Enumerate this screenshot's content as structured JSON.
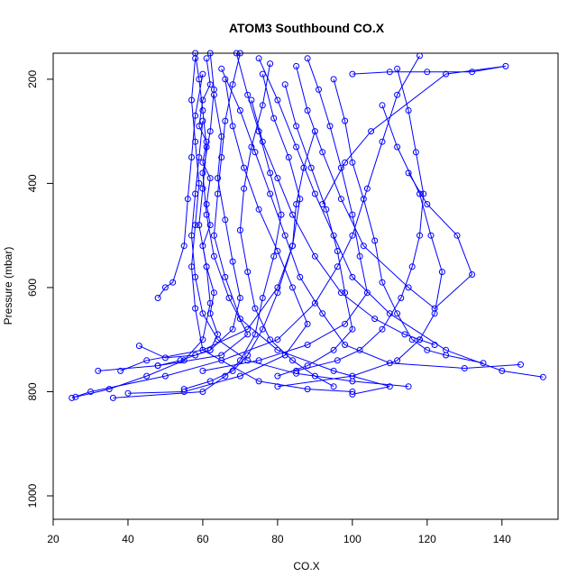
{
  "chart_data": {
    "type": "line",
    "title": "ATOM3 Southbound CO.X",
    "xlabel": "CO.X",
    "ylabel": "Pressure (mbar)",
    "xlim": [
      20,
      155
    ],
    "ylim": [
      1045,
      150
    ],
    "y_reversed": true,
    "xticks": [
      20,
      40,
      60,
      80,
      100,
      120,
      140
    ],
    "yticks": [
      200,
      400,
      600,
      800,
      1000
    ],
    "grid": false,
    "legend": "none",
    "series_color": "#0000ff",
    "marker": "open-circle",
    "series": [
      {
        "values_note": "profile 1",
        "points": [
          [
            58,
            150
          ],
          [
            59,
            200
          ],
          [
            60,
            260
          ],
          [
            61,
            330
          ],
          [
            60,
            410
          ],
          [
            59,
            480
          ],
          [
            61,
            560
          ],
          [
            62,
            630
          ],
          [
            60,
            700
          ],
          [
            55,
            740
          ],
          [
            45,
            770
          ],
          [
            35,
            795
          ],
          [
            26,
            810
          ]
        ]
      },
      {
        "points": [
          [
            70,
            150
          ],
          [
            68,
            210
          ],
          [
            66,
            280
          ],
          [
            65,
            350
          ],
          [
            64,
            420
          ],
          [
            63,
            500
          ],
          [
            66,
            580
          ],
          [
            70,
            660
          ],
          [
            80,
            720
          ],
          [
            95,
            760
          ],
          [
            110,
            790
          ],
          [
            100,
            805
          ]
        ]
      },
      {
        "points": [
          [
            75,
            160
          ],
          [
            80,
            240
          ],
          [
            85,
            330
          ],
          [
            90,
            420
          ],
          [
            95,
            500
          ],
          [
            100,
            580
          ],
          [
            110,
            650
          ],
          [
            125,
            720
          ],
          [
            140,
            760
          ],
          [
            151,
            772
          ]
        ]
      },
      {
        "points": [
          [
            118,
            155
          ],
          [
            112,
            230
          ],
          [
            108,
            320
          ],
          [
            104,
            410
          ],
          [
            100,
            500
          ],
          [
            96,
            560
          ],
          [
            90,
            630
          ],
          [
            80,
            700
          ],
          [
            65,
            740
          ],
          [
            50,
            770
          ],
          [
            30,
            800
          ],
          [
            25,
            812
          ]
        ]
      },
      {
        "points": [
          [
            62,
            150
          ],
          [
            63,
            220
          ],
          [
            62,
            300
          ],
          [
            60,
            380
          ],
          [
            61,
            460
          ],
          [
            63,
            540
          ],
          [
            67,
            620
          ],
          [
            72,
            690
          ],
          [
            65,
            730
          ],
          [
            48,
            750
          ],
          [
            32,
            760
          ]
        ]
      },
      {
        "points": [
          [
            85,
            175
          ],
          [
            88,
            260
          ],
          [
            92,
            340
          ],
          [
            97,
            430
          ],
          [
            103,
            520
          ],
          [
            115,
            600
          ],
          [
            122,
            640
          ],
          [
            132,
            575
          ],
          [
            128,
            500
          ],
          [
            120,
            440
          ],
          [
            115,
            380
          ]
        ]
      },
      {
        "points": [
          [
            65,
            180
          ],
          [
            70,
            260
          ],
          [
            74,
            340
          ],
          [
            78,
            420
          ],
          [
            82,
            500
          ],
          [
            86,
            580
          ],
          [
            92,
            650
          ],
          [
            98,
            710
          ],
          [
            110,
            745
          ],
          [
            130,
            755
          ],
          [
            145,
            748
          ]
        ]
      },
      {
        "points": [
          [
            60,
            190
          ],
          [
            58,
            270
          ],
          [
            57,
            350
          ],
          [
            56,
            430
          ],
          [
            55,
            520
          ],
          [
            52,
            590
          ],
          [
            50,
            600
          ],
          [
            48,
            620
          ]
        ]
      },
      {
        "points": [
          [
            100,
            190
          ],
          [
            110,
            186
          ],
          [
            120,
            186
          ],
          [
            132,
            186
          ],
          [
            141,
            175
          ],
          [
            125,
            190
          ],
          [
            105,
            300
          ],
          [
            98,
            360
          ],
          [
            92,
            440
          ]
        ]
      },
      {
        "points": [
          [
            78,
            170
          ],
          [
            76,
            250
          ],
          [
            73,
            330
          ],
          [
            71,
            410
          ],
          [
            70,
            490
          ],
          [
            72,
            570
          ],
          [
            74,
            640
          ],
          [
            78,
            700
          ],
          [
            84,
            740
          ],
          [
            90,
            770
          ],
          [
            95,
            790
          ]
        ]
      },
      {
        "points": [
          [
            58,
            160
          ],
          [
            57,
            240
          ],
          [
            58,
            320
          ],
          [
            59,
            400
          ],
          [
            58,
            480
          ],
          [
            57,
            560
          ],
          [
            58,
            640
          ],
          [
            60,
            720
          ],
          [
            75,
            780
          ],
          [
            88,
            795
          ],
          [
            100,
            800
          ]
        ]
      },
      {
        "points": [
          [
            66,
            200
          ],
          [
            68,
            290
          ],
          [
            71,
            370
          ],
          [
            75,
            450
          ],
          [
            80,
            530
          ],
          [
            84,
            600
          ],
          [
            88,
            670
          ],
          [
            82,
            730
          ],
          [
            70,
            770
          ],
          [
            55,
            800
          ],
          [
            40,
            803
          ]
        ]
      },
      {
        "points": [
          [
            108,
            250
          ],
          [
            112,
            330
          ],
          [
            118,
            420
          ],
          [
            121,
            500
          ],
          [
            124,
            570
          ],
          [
            122,
            650
          ],
          [
            118,
            700
          ],
          [
            112,
            740
          ],
          [
            100,
            770
          ],
          [
            80,
            790
          ]
        ]
      },
      {
        "points": [
          [
            90,
            300
          ],
          [
            87,
            370
          ],
          [
            85,
            440
          ],
          [
            84,
            520
          ],
          [
            80,
            600
          ],
          [
            72,
            680
          ],
          [
            60,
            720
          ],
          [
            45,
            740
          ],
          [
            38,
            760
          ]
        ]
      },
      {
        "points": [
          [
            61,
            160
          ],
          [
            62,
            210
          ],
          [
            60,
            240
          ],
          [
            59,
            290
          ],
          [
            61,
            320
          ],
          [
            60,
            360
          ],
          [
            62,
            390
          ],
          [
            61,
            440
          ],
          [
            62,
            480
          ],
          [
            60,
            520
          ],
          [
            61,
            560
          ],
          [
            63,
            610
          ],
          [
            62,
            650
          ],
          [
            64,
            690
          ],
          [
            62,
            720
          ],
          [
            58,
            730
          ],
          [
            50,
            735
          ],
          [
            43,
            712
          ]
        ]
      },
      {
        "points": [
          [
            76,
            190
          ],
          [
            79,
            275
          ],
          [
            83,
            350
          ],
          [
            86,
            430
          ],
          [
            84,
            520
          ],
          [
            80,
            610
          ],
          [
            76,
            680
          ],
          [
            72,
            730
          ],
          [
            68,
            760
          ],
          [
            62,
            780
          ],
          [
            55,
            795
          ]
        ]
      },
      {
        "points": [
          [
            95,
            200
          ],
          [
            98,
            280
          ],
          [
            100,
            360
          ],
          [
            103,
            430
          ],
          [
            106,
            510
          ],
          [
            108,
            590
          ],
          [
            112,
            650
          ],
          [
            116,
            700
          ],
          [
            120,
            720
          ],
          [
            125,
            730
          ],
          [
            135,
            745
          ]
        ]
      },
      {
        "points": [
          [
            69,
            150
          ],
          [
            72,
            230
          ],
          [
            75,
            300
          ],
          [
            78,
            380
          ],
          [
            81,
            460
          ],
          [
            79,
            540
          ],
          [
            76,
            620
          ],
          [
            74,
            690
          ],
          [
            70,
            740
          ],
          [
            66,
            770
          ],
          [
            60,
            800
          ],
          [
            36,
            812
          ]
        ]
      },
      {
        "points": [
          [
            112,
            180
          ],
          [
            115,
            260
          ],
          [
            117,
            340
          ],
          [
            119,
            420
          ],
          [
            118,
            500
          ],
          [
            116,
            560
          ],
          [
            113,
            620
          ],
          [
            108,
            680
          ],
          [
            102,
            720
          ],
          [
            96,
            740
          ],
          [
            85,
            760
          ]
        ]
      },
      {
        "points": [
          [
            63,
            230
          ],
          [
            65,
            310
          ],
          [
            64,
            390
          ],
          [
            66,
            470
          ],
          [
            68,
            550
          ],
          [
            70,
            620
          ],
          [
            68,
            680
          ],
          [
            62,
            720
          ],
          [
            54,
            740
          ],
          [
            48,
            750
          ]
        ]
      },
      {
        "points": [
          [
            82,
            210
          ],
          [
            85,
            290
          ],
          [
            89,
            370
          ],
          [
            93,
            450
          ],
          [
            96,
            530
          ],
          [
            98,
            610
          ],
          [
            100,
            680
          ],
          [
            95,
            720
          ],
          [
            88,
            750
          ],
          [
            80,
            770
          ]
        ]
      },
      {
        "points": [
          [
            60,
            280
          ],
          [
            59,
            350
          ],
          [
            58,
            420
          ],
          [
            57,
            500
          ],
          [
            58,
            580
          ],
          [
            60,
            650
          ],
          [
            64,
            700
          ],
          [
            72,
            740
          ],
          [
            85,
            765
          ],
          [
            100,
            780
          ],
          [
            115,
            790
          ]
        ]
      },
      {
        "points": [
          [
            73,
            240
          ],
          [
            76,
            320
          ],
          [
            80,
            390
          ],
          [
            84,
            460
          ],
          [
            90,
            540
          ],
          [
            97,
            610
          ],
          [
            106,
            660
          ],
          [
            114,
            690
          ],
          [
            118,
            700
          ],
          [
            122,
            710
          ]
        ]
      },
      {
        "points": [
          [
            88,
            160
          ],
          [
            91,
            220
          ],
          [
            94,
            290
          ],
          [
            97,
            370
          ],
          [
            100,
            460
          ],
          [
            102,
            540
          ],
          [
            104,
            610
          ],
          [
            98,
            670
          ],
          [
            88,
            710
          ],
          [
            75,
            740
          ],
          [
            60,
            760
          ]
        ]
      }
    ]
  }
}
